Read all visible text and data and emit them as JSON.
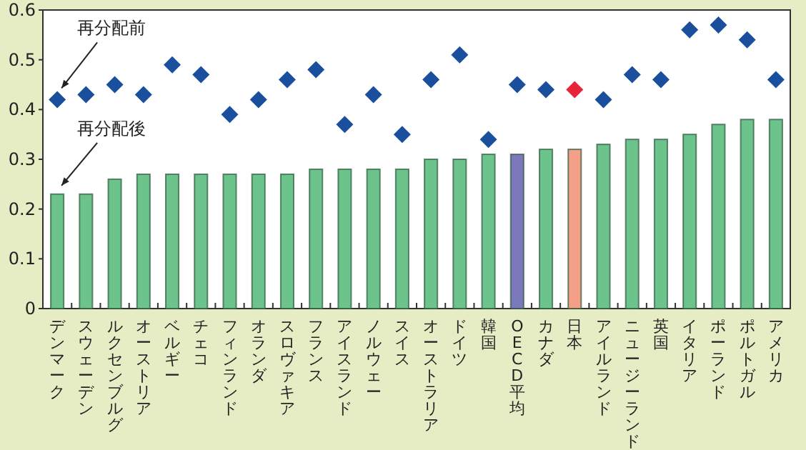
{
  "chart_data": {
    "type": "bar",
    "categories": [
      "デンマーク",
      "スウェーデン",
      "ルクセンブルグ",
      "オーストリア",
      "ベルギー",
      "チェコ",
      "フィンランド",
      "オランダ",
      "スロヴァキア",
      "フランス",
      "アイスランド",
      "ノルウェー",
      "スイス",
      "オーストラリア",
      "ドイツ",
      "韓国",
      "OECD平均",
      "カナダ",
      "日本",
      "アイルランド",
      "ニュージーランド",
      "英国",
      "イタリア",
      "ポーランド",
      "ポルトガル",
      "アメリカ"
    ],
    "series": [
      {
        "name": "再分配後",
        "colors": [
          "#6cc48c",
          "#6cc48c",
          "#6cc48c",
          "#6cc48c",
          "#6cc48c",
          "#6cc48c",
          "#6cc48c",
          "#6cc48c",
          "#6cc48c",
          "#6cc48c",
          "#6cc48c",
          "#6cc48c",
          "#6cc48c",
          "#6cc48c",
          "#6cc48c",
          "#6cc48c",
          "#7c78bc",
          "#6cc48c",
          "#f4a088",
          "#6cc48c",
          "#6cc48c",
          "#6cc48c",
          "#6cc48c",
          "#6cc48c",
          "#6cc48c",
          "#6cc48c"
        ],
        "values": [
          0.23,
          0.23,
          0.26,
          0.27,
          0.27,
          0.27,
          0.27,
          0.27,
          0.27,
          0.28,
          0.28,
          0.28,
          0.28,
          0.3,
          0.3,
          0.31,
          0.31,
          0.32,
          0.32,
          0.33,
          0.34,
          0.34,
          0.35,
          0.37,
          0.38,
          0.38
        ]
      },
      {
        "name": "再分配前",
        "type": "scatter",
        "marker": "diamond",
        "colors": [
          "#1a4f9e",
          "#1a4f9e",
          "#1a4f9e",
          "#1a4f9e",
          "#1a4f9e",
          "#1a4f9e",
          "#1a4f9e",
          "#1a4f9e",
          "#1a4f9e",
          "#1a4f9e",
          "#1a4f9e",
          "#1a4f9e",
          "#1a4f9e",
          "#1a4f9e",
          "#1a4f9e",
          "#1a4f9e",
          "#1a4f9e",
          "#1a4f9e",
          "#e8243a",
          "#1a4f9e",
          "#1a4f9e",
          "#1a4f9e",
          "#1a4f9e",
          "#1a4f9e",
          "#1a4f9e",
          "#1a4f9e"
        ],
        "values": [
          0.42,
          0.43,
          0.45,
          0.43,
          0.49,
          0.47,
          0.39,
          0.42,
          0.46,
          0.48,
          0.37,
          0.43,
          0.35,
          0.46,
          0.51,
          0.34,
          0.45,
          0.44,
          0.44,
          0.42,
          0.47,
          0.46,
          0.56,
          0.57,
          0.54,
          0.46
        ]
      }
    ],
    "ylim": [
      0,
      0.6
    ],
    "yticks": [
      0,
      0.1,
      0.2,
      0.3,
      0.4,
      0.5,
      0.6
    ]
  }
}
